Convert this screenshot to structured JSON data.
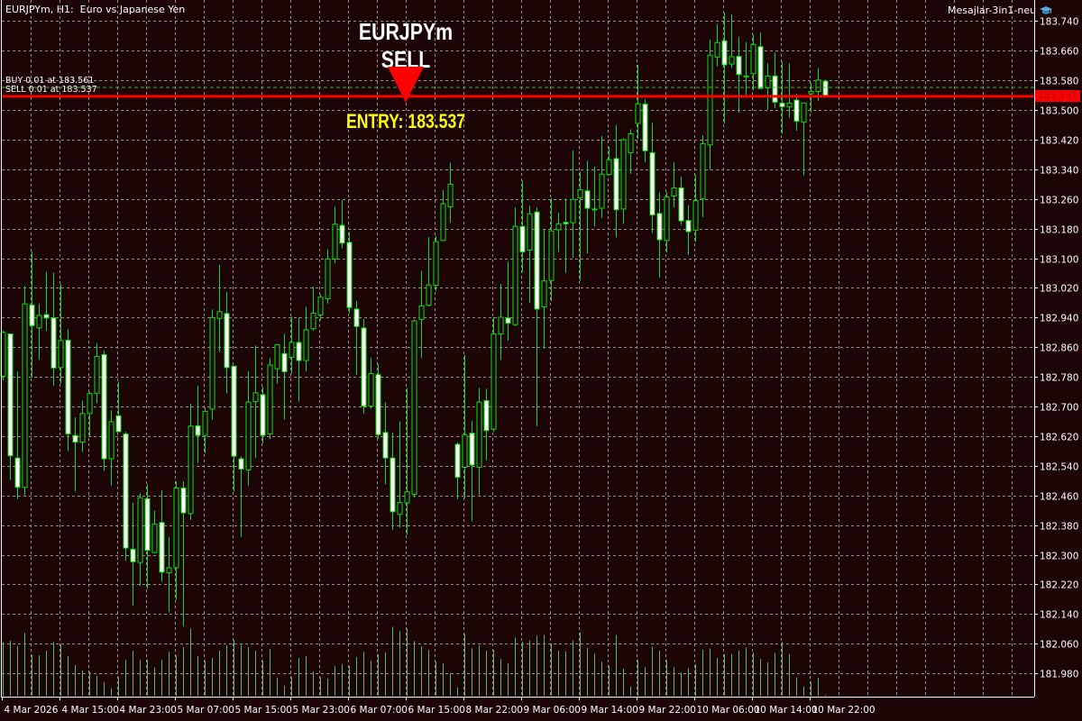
{
  "header": {
    "symbol_info": "EURJPYm, H1:  Euro vs Japanese Yen",
    "expert_name": "Mesajlar-3in1-neu",
    "expert_icon": "graduation-cap-icon"
  },
  "annotations": {
    "signal_title": "EURJPYm SELL",
    "entry_label": "ENTRY: 183.537",
    "arrow": "sell-arrow-down-icon"
  },
  "orders": [
    {
      "label": "BUY 0.01 at 183.561",
      "price": 183.561,
      "color": "#3fae3f",
      "style": "dashed"
    },
    {
      "label": "SELL 0.01 at 183.537",
      "price": 183.537,
      "color": "#ff0000",
      "style": "solid"
    }
  ],
  "current_price": {
    "label": "183.537",
    "value": 183.537
  },
  "colors": {
    "background": "#1c0404",
    "grid": "#9a8c8c",
    "candle_outline": "#00e600",
    "bear_body": "#ffffff",
    "volume": "#4fc34f",
    "price_line": "#ff0000",
    "entry_text": "#ffff00"
  },
  "chart_data": {
    "type": "candlestick",
    "timeframe": "H1",
    "grid": true,
    "ylim": [
      181.917,
      183.797
    ],
    "y_ticks": [
      "183.740",
      "183.660",
      "183.580",
      "183.500",
      "183.420",
      "183.340",
      "183.260",
      "183.180",
      "183.100",
      "183.020",
      "182.940",
      "182.860",
      "182.780",
      "182.700",
      "182.620",
      "182.540",
      "182.460",
      "182.380",
      "182.300",
      "182.220",
      "182.140",
      "182.060",
      "181.980"
    ],
    "x_ticks": [
      {
        "index": 0,
        "label": "4 Mar 2026"
      },
      {
        "index": 8,
        "label": "4 Mar 15:00"
      },
      {
        "index": 16,
        "label": "4 Mar 23:00"
      },
      {
        "index": 24,
        "label": "5 Mar 07:00"
      },
      {
        "index": 32,
        "label": "5 Mar 15:00"
      },
      {
        "index": 40,
        "label": "5 Mar 23:00"
      },
      {
        "index": 48,
        "label": "6 Mar 07:00"
      },
      {
        "index": 56,
        "label": "6 Mar 15:00"
      },
      {
        "index": 64,
        "label": "8 Mar 22:00"
      },
      {
        "index": 72,
        "label": "9 Mar 06:00"
      },
      {
        "index": 80,
        "label": "9 Mar 14:00"
      },
      {
        "index": 88,
        "label": "9 Mar 22:00"
      },
      {
        "index": 96,
        "label": "10 Mar 06:00"
      },
      {
        "index": 104,
        "label": "10 Mar 14:00"
      },
      {
        "index": 112,
        "label": "10 Mar 22:00"
      }
    ],
    "ohlc_fields": [
      "open",
      "high",
      "low",
      "close"
    ],
    "ohlc": [
      [
        182.782,
        182.905,
        182.77,
        182.9
      ],
      [
        182.896,
        182.896,
        182.502,
        182.567
      ],
      [
        182.561,
        182.794,
        182.45,
        182.482
      ],
      [
        182.482,
        183.025,
        182.459,
        182.977
      ],
      [
        182.974,
        183.119,
        182.778,
        182.918
      ],
      [
        182.912,
        182.977,
        182.827,
        182.946
      ],
      [
        182.948,
        183.063,
        182.904,
        182.939
      ],
      [
        182.939,
        183.061,
        182.756,
        182.804
      ],
      [
        182.805,
        183.031,
        182.762,
        182.878
      ],
      [
        182.879,
        182.909,
        182.579,
        182.626
      ],
      [
        182.622,
        182.671,
        182.471,
        182.604
      ],
      [
        182.604,
        182.716,
        182.577,
        182.681
      ],
      [
        182.681,
        182.74,
        182.62,
        182.735
      ],
      [
        182.736,
        182.871,
        182.709,
        182.835
      ],
      [
        182.84,
        182.851,
        182.527,
        182.559
      ],
      [
        182.559,
        182.69,
        182.486,
        182.659
      ],
      [
        182.675,
        182.767,
        182.632,
        182.632
      ],
      [
        182.626,
        182.632,
        182.283,
        182.318
      ],
      [
        182.315,
        182.44,
        182.162,
        182.281
      ],
      [
        182.279,
        182.466,
        182.216,
        182.454
      ],
      [
        182.451,
        182.49,
        182.208,
        182.312
      ],
      [
        182.306,
        182.419,
        182.304,
        182.383
      ],
      [
        182.387,
        182.474,
        182.227,
        182.253
      ],
      [
        182.251,
        182.348,
        182.145,
        182.265
      ],
      [
        182.265,
        182.498,
        182.178,
        182.48
      ],
      [
        182.48,
        182.498,
        182.107,
        182.413
      ],
      [
        182.411,
        182.707,
        182.394,
        182.647
      ],
      [
        182.648,
        182.756,
        182.547,
        182.622
      ],
      [
        182.622,
        182.697,
        182.574,
        182.687
      ],
      [
        182.693,
        182.962,
        182.664,
        182.94
      ],
      [
        182.938,
        183.082,
        182.847,
        182.956
      ],
      [
        182.951,
        183.009,
        182.735,
        182.805
      ],
      [
        182.809,
        182.81,
        182.47,
        182.566
      ],
      [
        182.559,
        182.565,
        182.348,
        182.531
      ],
      [
        182.529,
        182.796,
        182.486,
        182.712
      ],
      [
        182.713,
        182.865,
        182.561,
        182.737
      ],
      [
        182.732,
        182.754,
        182.6,
        182.622
      ],
      [
        182.626,
        182.831,
        182.612,
        182.812
      ],
      [
        182.802,
        182.867,
        182.762,
        182.867
      ],
      [
        182.843,
        182.896,
        182.665,
        182.794
      ],
      [
        182.833,
        182.943,
        182.789,
        182.873
      ],
      [
        182.873,
        182.94,
        182.713,
        182.824
      ],
      [
        182.824,
        182.969,
        182.794,
        182.907
      ],
      [
        182.91,
        183.024,
        182.904,
        182.952
      ],
      [
        182.947,
        183.003,
        182.932,
        182.995
      ],
      [
        182.991,
        183.124,
        182.978,
        183.098
      ],
      [
        183.098,
        183.239,
        183.086,
        183.192
      ],
      [
        183.189,
        183.257,
        183.127,
        183.141
      ],
      [
        183.143,
        183.171,
        182.952,
        182.967
      ],
      [
        182.963,
        182.985,
        182.786,
        182.916
      ],
      [
        182.912,
        182.936,
        182.681,
        182.701
      ],
      [
        182.701,
        182.832,
        182.694,
        182.789
      ],
      [
        182.786,
        182.815,
        182.613,
        182.624
      ],
      [
        182.63,
        182.711,
        182.49,
        182.561
      ],
      [
        182.561,
        182.63,
        182.367,
        182.416
      ],
      [
        182.409,
        182.66,
        182.373,
        182.441
      ],
      [
        182.44,
        182.75,
        182.354,
        182.47
      ],
      [
        182.463,
        182.935,
        182.455,
        182.931
      ],
      [
        182.935,
        183.066,
        182.831,
        182.971
      ],
      [
        182.973,
        183.157,
        182.97,
        183.028
      ],
      [
        183.027,
        183.16,
        183.012,
        183.145
      ],
      [
        183.148,
        183.284,
        183.146,
        183.247
      ],
      [
        183.239,
        183.358,
        183.196,
        183.3
      ],
      [
        182.598,
        182.603,
        182.45,
        182.509
      ],
      [
        182.536,
        182.839,
        182.452,
        182.624
      ],
      [
        182.628,
        182.661,
        182.39,
        182.542
      ],
      [
        182.536,
        182.75,
        182.458,
        182.712
      ],
      [
        182.716,
        182.748,
        182.555,
        182.635
      ],
      [
        182.639,
        182.941,
        182.631,
        182.896
      ],
      [
        182.896,
        183.031,
        182.826,
        182.941
      ],
      [
        182.939,
        183.091,
        182.878,
        182.925
      ],
      [
        182.921,
        183.237,
        182.917,
        183.186
      ],
      [
        183.186,
        183.31,
        183.063,
        183.117
      ],
      [
        183.122,
        183.242,
        182.98,
        183.22
      ],
      [
        183.225,
        183.237,
        182.647,
        182.963
      ],
      [
        182.969,
        183.178,
        182.856,
        183.039
      ],
      [
        183.04,
        183.263,
        182.984,
        183.174
      ],
      [
        183.177,
        183.223,
        183.117,
        183.193
      ],
      [
        183.197,
        183.261,
        183.061,
        183.193
      ],
      [
        183.196,
        183.391,
        183.101,
        183.259
      ],
      [
        183.263,
        183.334,
        183.039,
        183.285
      ],
      [
        183.282,
        183.363,
        183.113,
        183.235
      ],
      [
        183.233,
        183.347,
        183.186,
        183.233
      ],
      [
        183.235,
        183.43,
        183.209,
        183.327
      ],
      [
        183.326,
        183.401,
        183.324,
        183.366
      ],
      [
        183.369,
        183.46,
        183.156,
        183.231
      ],
      [
        183.233,
        183.424,
        183.193,
        183.42
      ],
      [
        183.385,
        183.448,
        183.328,
        183.436
      ],
      [
        183.464,
        183.622,
        183.422,
        183.517
      ],
      [
        183.516,
        183.529,
        183.359,
        183.39
      ],
      [
        183.385,
        183.466,
        183.168,
        183.217
      ],
      [
        183.221,
        183.278,
        183.048,
        183.15
      ],
      [
        183.148,
        183.279,
        183.116,
        183.266
      ],
      [
        183.268,
        183.359,
        183.237,
        183.29
      ],
      [
        183.29,
        183.32,
        183.19,
        183.201
      ],
      [
        183.202,
        183.244,
        183.109,
        183.172
      ],
      [
        183.176,
        183.325,
        183.144,
        183.256
      ],
      [
        183.26,
        183.432,
        183.211,
        183.409
      ],
      [
        183.406,
        183.691,
        183.339,
        183.648
      ],
      [
        183.643,
        183.732,
        183.618,
        183.682
      ],
      [
        183.687,
        183.763,
        183.464,
        183.622
      ],
      [
        183.624,
        183.758,
        183.614,
        183.644
      ],
      [
        183.645,
        183.697,
        183.493,
        183.596
      ],
      [
        183.592,
        183.683,
        183.541,
        183.592
      ],
      [
        183.598,
        183.704,
        183.553,
        183.677
      ],
      [
        183.671,
        183.709,
        183.558,
        183.558
      ],
      [
        183.56,
        183.626,
        183.501,
        183.592
      ],
      [
        183.592,
        183.655,
        183.505,
        183.521
      ],
      [
        183.519,
        183.631,
        183.436,
        183.509
      ],
      [
        183.509,
        183.626,
        183.48,
        183.519
      ],
      [
        183.527,
        183.543,
        183.444,
        183.47
      ],
      [
        183.467,
        183.519,
        183.324,
        183.519
      ],
      [
        183.544,
        183.574,
        183.493,
        183.55
      ],
      [
        183.55,
        183.614,
        183.525,
        183.581
      ],
      [
        183.578,
        183.582,
        183.541,
        183.537
      ]
    ],
    "volume_relative": [
      180,
      185,
      167,
      211,
      138,
      136,
      151,
      181,
      172,
      133,
      103,
      85,
      81,
      67,
      46,
      25,
      63,
      121,
      151,
      121,
      121,
      95,
      121,
      148,
      136,
      163,
      226,
      133,
      118,
      127,
      151,
      169,
      188,
      172,
      163,
      151,
      118,
      157,
      61,
      34,
      63,
      127,
      133,
      82,
      63,
      58,
      100,
      106,
      100,
      130,
      148,
      118,
      139,
      145,
      232,
      217,
      226,
      184,
      166,
      154,
      115,
      109,
      76,
      28,
      208,
      160,
      169,
      151,
      154,
      124,
      109,
      196,
      181,
      186,
      202,
      204,
      176,
      152,
      149,
      186,
      213,
      161,
      142,
      114,
      101,
      204,
      91,
      31,
      120,
      96,
      165,
      152,
      120,
      96,
      78,
      93,
      106,
      155,
      159,
      127,
      140,
      140,
      152,
      162,
      146,
      124,
      112,
      144,
      180,
      140,
      62,
      31,
      47,
      60,
      3
    ]
  }
}
